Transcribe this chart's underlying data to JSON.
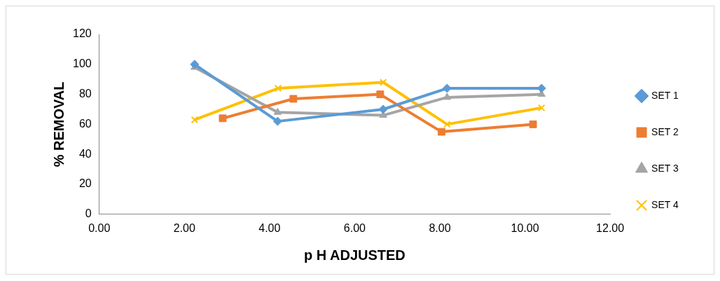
{
  "chart_data": {
    "type": "line",
    "xlabel": "p H ADJUSTED",
    "ylabel": "% REMOVAL",
    "xlim": [
      0,
      12
    ],
    "ylim": [
      0,
      120
    ],
    "xticks": [
      {
        "value": 0,
        "label": "0.00"
      },
      {
        "value": 2,
        "label": "2.00"
      },
      {
        "value": 4,
        "label": "4.00"
      },
      {
        "value": 6,
        "label": "6.00"
      },
      {
        "value": 8,
        "label": "8.00"
      },
      {
        "value": 10,
        "label": "10.00"
      },
      {
        "value": 12,
        "label": "12.00"
      }
    ],
    "yticks": [
      0,
      20,
      40,
      60,
      80,
      100,
      120
    ],
    "grid": false,
    "legend": "right",
    "line_style": "solid",
    "series": [
      {
        "name": "SET 1",
        "color": "#5b9bd5",
        "marker": "diamond",
        "x": [
          2.24,
          4.19,
          6.67,
          8.17,
          10.39
        ],
        "values": [
          100,
          62,
          70,
          84,
          84
        ]
      },
      {
        "name": "SET 2",
        "color": "#ed7d31",
        "marker": "square",
        "x": [
          2.9,
          4.56,
          6.6,
          8.04,
          10.19
        ],
        "values": [
          64,
          77,
          80,
          55,
          60
        ]
      },
      {
        "name": "SET 3",
        "color": "#a5a5a5",
        "marker": "triangle",
        "x": [
          2.24,
          4.19,
          6.67,
          8.17,
          10.39
        ],
        "values": [
          98,
          68,
          66,
          78,
          80
        ]
      },
      {
        "name": "SET 4",
        "color": "#ffc000",
        "marker": "cross",
        "x": [
          2.24,
          4.2,
          6.67,
          8.17,
          10.39
        ],
        "values": [
          63,
          84,
          88,
          60,
          71
        ]
      }
    ]
  }
}
